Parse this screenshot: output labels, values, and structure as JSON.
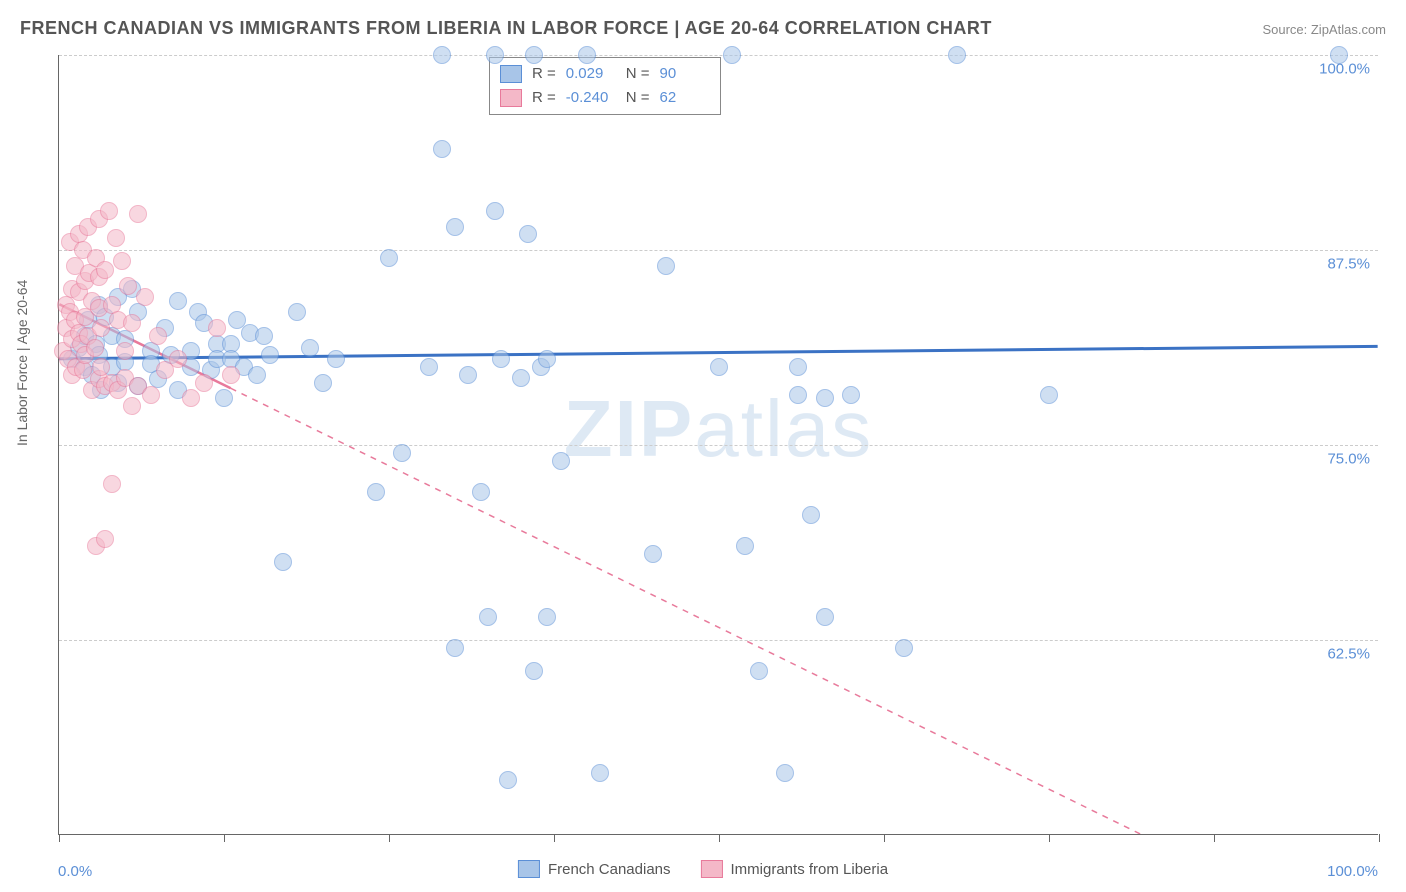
{
  "title": "FRENCH CANADIAN VS IMMIGRANTS FROM LIBERIA IN LABOR FORCE | AGE 20-64 CORRELATION CHART",
  "source": "Source: ZipAtlas.com",
  "y_axis_label": "In Labor Force | Age 20-64",
  "watermark_bold": "ZIP",
  "watermark_rest": "atlas",
  "chart": {
    "type": "scatter",
    "xlim": [
      0,
      100
    ],
    "ylim": [
      50,
      100
    ],
    "x_ticks": [
      0,
      12.5,
      25,
      37.5,
      50,
      62.5,
      75,
      87.5,
      100
    ],
    "y_gridlines": [
      62.5,
      75.0,
      87.5,
      100.0
    ],
    "y_tick_labels": [
      "62.5%",
      "75.0%",
      "87.5%",
      "100.0%"
    ],
    "x_label_0": "0.0%",
    "x_label_100": "100.0%",
    "background_color": "#ffffff",
    "grid_color": "#cccccc",
    "axis_color": "#666666",
    "point_radius": 9,
    "point_opacity": 0.55,
    "series": [
      {
        "name": "French Canadians",
        "legend_label": "French Canadians",
        "color_fill": "#a8c5e8",
        "color_stroke": "#5b8fd6",
        "r_value": "0.029",
        "n_value": "90",
        "trend": {
          "x1": 0,
          "y1": 80.5,
          "x2": 100,
          "y2": 81.3,
          "stroke": "#3b72c4",
          "width": 3,
          "dash": "none"
        },
        "points": [
          [
            1,
            80.5
          ],
          [
            1.5,
            81.2
          ],
          [
            2,
            82
          ],
          [
            2,
            80
          ],
          [
            2.2,
            83
          ],
          [
            2.5,
            79.5
          ],
          [
            2.8,
            81.5
          ],
          [
            3,
            80.8
          ],
          [
            3,
            84
          ],
          [
            3.2,
            78.5
          ],
          [
            3.5,
            83.2
          ],
          [
            4,
            80
          ],
          [
            4,
            82
          ],
          [
            4.5,
            84.5
          ],
          [
            4.5,
            79
          ],
          [
            5,
            80.3
          ],
          [
            5,
            81.8
          ],
          [
            5.5,
            85
          ],
          [
            6,
            78.8
          ],
          [
            6,
            83.5
          ],
          [
            7,
            81
          ],
          [
            7,
            80.2
          ],
          [
            7.5,
            79.2
          ],
          [
            8,
            82.5
          ],
          [
            8.5,
            80.8
          ],
          [
            9,
            84.2
          ],
          [
            9,
            78.5
          ],
          [
            10,
            80
          ],
          [
            10,
            81
          ],
          [
            10.5,
            83.5
          ],
          [
            11,
            82.8
          ],
          [
            11.5,
            79.8
          ],
          [
            12,
            81.5
          ],
          [
            12,
            80.5
          ],
          [
            12.5,
            78
          ],
          [
            13,
            81.5
          ],
          [
            13,
            80.5
          ],
          [
            13.5,
            83
          ],
          [
            14,
            80
          ],
          [
            14.5,
            82.2
          ],
          [
            15,
            79.5
          ],
          [
            15.5,
            82
          ],
          [
            16,
            80.8
          ],
          [
            17,
            67.5
          ],
          [
            18,
            83.5
          ],
          [
            19,
            81.2
          ],
          [
            20,
            79
          ],
          [
            21,
            80.5
          ],
          [
            24,
            72
          ],
          [
            25,
            87
          ],
          [
            26,
            74.5
          ],
          [
            28,
            80
          ],
          [
            29,
            94
          ],
          [
            29,
            100
          ],
          [
            30,
            89
          ],
          [
            30,
            62
          ],
          [
            31,
            79.5
          ],
          [
            32,
            72
          ],
          [
            32.5,
            64
          ],
          [
            33,
            100
          ],
          [
            33,
            90
          ],
          [
            33.5,
            80.5
          ],
          [
            34,
            53.5
          ],
          [
            35,
            79.3
          ],
          [
            35.5,
            88.5
          ],
          [
            36,
            60.5
          ],
          [
            36,
            100
          ],
          [
            36.5,
            80
          ],
          [
            37,
            64
          ],
          [
            37,
            80.5
          ],
          [
            38,
            74
          ],
          [
            40,
            100
          ],
          [
            41,
            54
          ],
          [
            45,
            68
          ],
          [
            46,
            86.5
          ],
          [
            50,
            80
          ],
          [
            51,
            100
          ],
          [
            52,
            68.5
          ],
          [
            53,
            60.5
          ],
          [
            55,
            54
          ],
          [
            56,
            80
          ],
          [
            56,
            78.2
          ],
          [
            57,
            70.5
          ],
          [
            58,
            78
          ],
          [
            58,
            64
          ],
          [
            60,
            78.2
          ],
          [
            64,
            62
          ],
          [
            68,
            100
          ],
          [
            75,
            78.2
          ],
          [
            97,
            100
          ]
        ]
      },
      {
        "name": "Immigrants from Liberia",
        "legend_label": "Immigrants from Liberia",
        "color_fill": "#f4b8c8",
        "color_stroke": "#e87a9b",
        "r_value": "-0.240",
        "n_value": "62",
        "trend": {
          "x1": 0,
          "y1": 84,
          "x2": 82,
          "y2": 50,
          "stroke": "#e87a9b",
          "width": 2.5,
          "dash": "solid_then_dash",
          "solid_until_x": 13
        },
        "points": [
          [
            0.3,
            81
          ],
          [
            0.5,
            82.5
          ],
          [
            0.5,
            84
          ],
          [
            0.7,
            80.5
          ],
          [
            0.8,
            83.5
          ],
          [
            0.8,
            88
          ],
          [
            1,
            81.8
          ],
          [
            1,
            85
          ],
          [
            1,
            79.5
          ],
          [
            1.2,
            83
          ],
          [
            1.2,
            86.5
          ],
          [
            1.3,
            80
          ],
          [
            1.5,
            84.8
          ],
          [
            1.5,
            82.2
          ],
          [
            1.5,
            88.5
          ],
          [
            1.7,
            81.5
          ],
          [
            1.8,
            87.5
          ],
          [
            1.8,
            79.8
          ],
          [
            2,
            85.5
          ],
          [
            2,
            83.2
          ],
          [
            2,
            80.8
          ],
          [
            2.2,
            89
          ],
          [
            2.2,
            82
          ],
          [
            2.3,
            86
          ],
          [
            2.5,
            84.2
          ],
          [
            2.5,
            78.5
          ],
          [
            2.7,
            81.2
          ],
          [
            2.8,
            87
          ],
          [
            2.8,
            68.5
          ],
          [
            3,
            83.8
          ],
          [
            3,
            85.8
          ],
          [
            3,
            79.2
          ],
          [
            3,
            89.5
          ],
          [
            3.2,
            80
          ],
          [
            3.2,
            82.5
          ],
          [
            3.5,
            78.8
          ],
          [
            3.5,
            86.2
          ],
          [
            3.5,
            69
          ],
          [
            3.8,
            90
          ],
          [
            4,
            84
          ],
          [
            4,
            79
          ],
          [
            4,
            72.5
          ],
          [
            4.3,
            88.3
          ],
          [
            4.5,
            78.5
          ],
          [
            4.5,
            83
          ],
          [
            4.8,
            86.8
          ],
          [
            5,
            81
          ],
          [
            5,
            79.3
          ],
          [
            5.2,
            85.2
          ],
          [
            5.5,
            77.5
          ],
          [
            5.5,
            82.8
          ],
          [
            6,
            89.8
          ],
          [
            6,
            78.8
          ],
          [
            6.5,
            84.5
          ],
          [
            7,
            78.2
          ],
          [
            7.5,
            82
          ],
          [
            8,
            79.8
          ],
          [
            9,
            80.5
          ],
          [
            10,
            78
          ],
          [
            11,
            79
          ],
          [
            12,
            82.5
          ],
          [
            13,
            79.5
          ]
        ]
      }
    ]
  },
  "stats_legend": {
    "r_label": "R  =",
    "n_label": "N  ="
  }
}
